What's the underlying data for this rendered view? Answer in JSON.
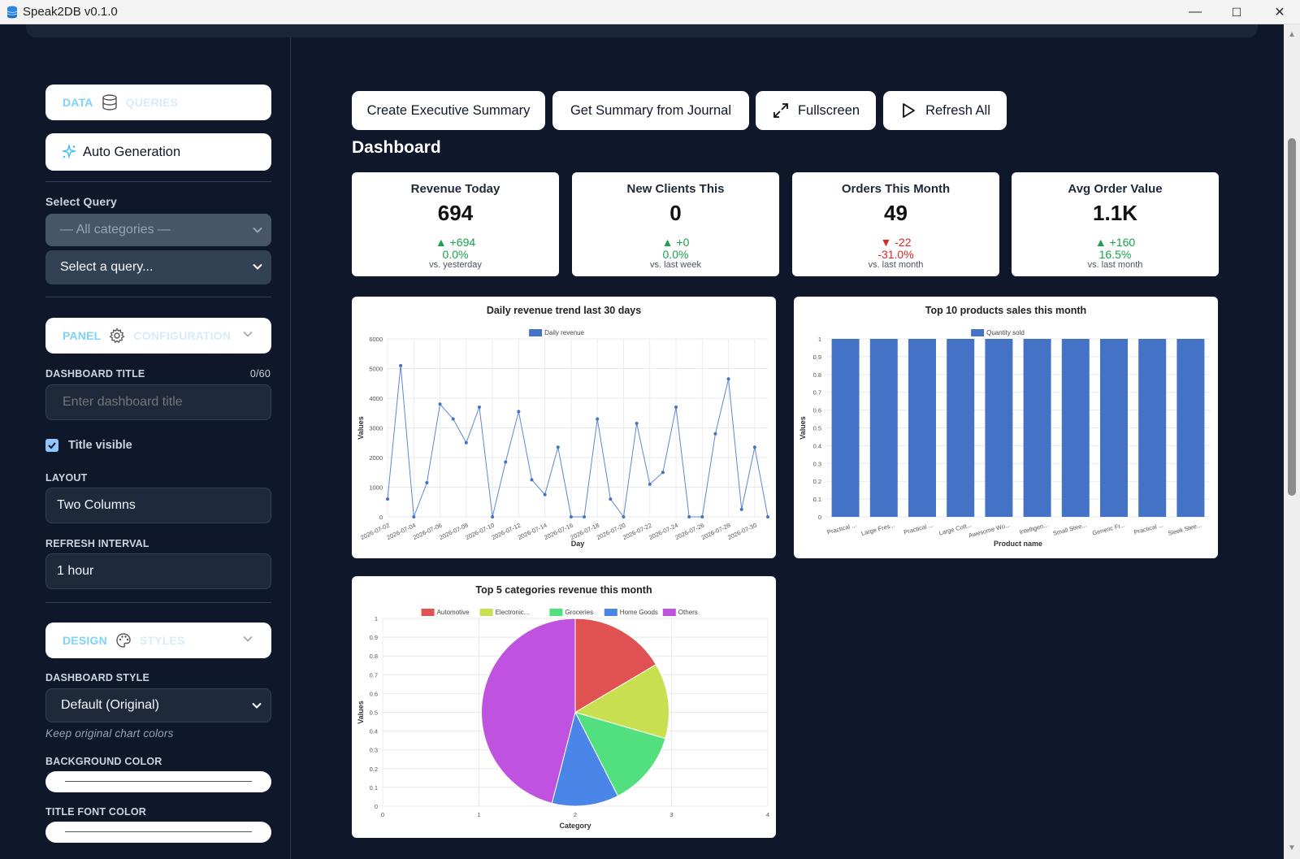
{
  "window": {
    "title": "Speak2DB v0.1.0",
    "minimize": "—",
    "maximize": "☐",
    "close": "✕"
  },
  "sidebar": {
    "data_tab": {
      "label": "DATA",
      "secondary": "QUERIES",
      "icon": "database-icon"
    },
    "auto_generation": {
      "label": "Auto Generation",
      "icon": "sparkles-icon"
    },
    "select_query_label": "Select Query",
    "category_select": "— All categories —",
    "query_select": "Select a query...",
    "panel_section": {
      "label": "PANEL",
      "secondary": "CONFIGURATION",
      "icon": "gear-icon"
    },
    "dashboard_title_label": "DASHBOARD TITLE",
    "dashboard_title_count": "0/60",
    "dashboard_title_placeholder": "Enter dashboard title",
    "title_visible_label": "Title visible",
    "layout_label": "LAYOUT",
    "layout_value": "Two Columns",
    "refresh_label": "REFRESH INTERVAL",
    "refresh_value": "1 hour",
    "design_section": {
      "label": "DESIGN",
      "secondary": "STYLES",
      "icon": "palette-icon"
    },
    "dashboard_style_label": "DASHBOARD STYLE",
    "dashboard_style_value": "Default (Original)",
    "dashboard_style_hint": "Keep original chart colors",
    "background_color_label": "BACKGROUND COLOR",
    "title_font_color_label": "TITLE FONT COLOR"
  },
  "toolbar": {
    "exec_summary": "Create Executive Summary",
    "journal_summary": "Get Summary from Journal",
    "fullscreen": "Fullscreen",
    "refresh_all": "Refresh All"
  },
  "dashboard": {
    "heading": "Dashboard"
  },
  "kpis": [
    {
      "title": "Revenue Today",
      "value": "694",
      "delta": "▲ +694",
      "pct": "0.0%",
      "compare": "vs. yesterday",
      "trend": "up"
    },
    {
      "title": "New Clients This",
      "value": "0",
      "delta": "▲ +0",
      "pct": "0.0%",
      "compare": "vs. last week",
      "trend": "up"
    },
    {
      "title": "Orders This Month",
      "value": "49",
      "delta": "▼ -22",
      "pct": "-31.0%",
      "compare": "vs. last month",
      "trend": "down"
    },
    {
      "title": "Avg Order Value",
      "value": "1.1K",
      "delta": "▲ +160",
      "pct": "16.5%",
      "compare": "vs. last month",
      "trend": "up"
    }
  ],
  "colors": {
    "accent": "#7dd3fc",
    "bar_blue": "#4472c4",
    "up": "#16a34a",
    "down": "#dc2626"
  },
  "chart_data": [
    {
      "type": "line",
      "title": "Daily revenue trend last 30 days",
      "xlabel": "Day",
      "ylabel": "Values",
      "ylim": [
        0,
        6000
      ],
      "yticks": [
        0,
        1000,
        2000,
        3000,
        4000,
        5000,
        6000
      ],
      "grid": true,
      "legend": "top",
      "x": [
        "2026-07-02",
        "2026-07-03",
        "2026-07-04",
        "2026-07-05",
        "2026-07-06",
        "2026-07-07",
        "2026-07-08",
        "2026-07-09",
        "2026-07-10",
        "2026-07-11",
        "2026-07-12",
        "2026-07-13",
        "2026-07-14",
        "2026-07-15",
        "2026-07-16",
        "2026-07-17",
        "2026-07-18",
        "2026-07-19",
        "2026-07-20",
        "2026-07-21",
        "2026-07-22",
        "2026-07-23",
        "2026-07-24",
        "2026-07-25",
        "2026-07-26",
        "2026-07-27",
        "2026-07-28",
        "2026-07-29",
        "2026-07-30",
        "2026-07-31"
      ],
      "xtick_labels": [
        "2026-07-02",
        "2026-07-04",
        "2026-07-06",
        "2026-07-08",
        "2026-07-10",
        "2026-07-12",
        "2026-07-14",
        "2026-07-16",
        "2026-07-18",
        "2026-07-20",
        "2026-07-22",
        "2026-07-24",
        "2026-07-26",
        "2026-07-28",
        "2026-07-30"
      ],
      "series": [
        {
          "name": "Daily revenue",
          "color": "#4472c4",
          "values": [
            600,
            5100,
            0,
            1150,
            3800,
            3300,
            2500,
            3700,
            0,
            1850,
            3550,
            1250,
            750,
            2350,
            0,
            0,
            3300,
            600,
            0,
            3150,
            1100,
            1500,
            3700,
            0,
            0,
            2800,
            4650,
            250,
            2350,
            0
          ]
        }
      ]
    },
    {
      "type": "bar",
      "title": "Top 10 products sales this month",
      "xlabel": "Product name",
      "ylabel": "Values",
      "ylim": [
        0,
        1
      ],
      "yticks": [
        0,
        0.1,
        0.2,
        0.3,
        0.4,
        0.5,
        0.6,
        0.7,
        0.8,
        0.9,
        1
      ],
      "grid": true,
      "legend": "top",
      "categories": [
        "Practical ...",
        "Large Fres...",
        "Practical ...",
        "Large Cott...",
        "Awesome Wo...",
        "Intelligen...",
        "Small Stee...",
        "Generic Fr...",
        "Practical ...",
        "Sleek Stee..."
      ],
      "series": [
        {
          "name": "Quantity sold",
          "color": "#4472c4",
          "values": [
            1,
            1,
            1,
            1,
            1,
            1,
            1,
            1,
            1,
            1
          ]
        }
      ]
    },
    {
      "type": "pie",
      "title": "Top 5 categories revenue this month",
      "xlabel": "Category",
      "ylabel": "Values",
      "xticks": [
        0,
        1,
        2,
        3,
        4
      ],
      "yticks": [
        0,
        0.1,
        0.2,
        0.3,
        0.4,
        0.5,
        0.6,
        0.7,
        0.8,
        0.9,
        1
      ],
      "legend": "top",
      "slices": [
        {
          "name": "Automotive",
          "label": "Automotive",
          "value": 0.165,
          "color": "#e05252"
        },
        {
          "name": "Electronics",
          "label": "Electronic...",
          "value": 0.13,
          "color": "#c8e04f"
        },
        {
          "name": "Groceries",
          "label": "Groceries",
          "value": 0.13,
          "color": "#52e07f"
        },
        {
          "name": "Home Goods",
          "label": "Home Goods",
          "value": 0.115,
          "color": "#4a86e8"
        },
        {
          "name": "Others",
          "label": "Others",
          "value": 0.46,
          "color": "#c052e0"
        }
      ]
    }
  ]
}
